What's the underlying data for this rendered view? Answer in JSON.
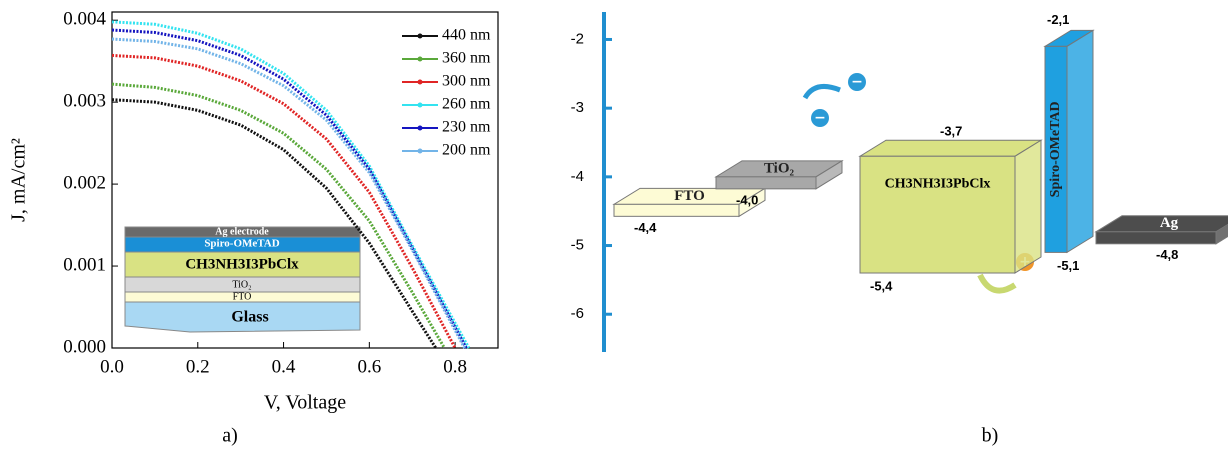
{
  "chart_data": [
    {
      "type": "line",
      "xlabel": "V, Voltage",
      "ylabel": "J, mA/cm²",
      "caption": "a)",
      "xlim": [
        0,
        0.9
      ],
      "ylim": [
        0,
        0.0041
      ],
      "xticks": [
        {
          "value": 0,
          "label": "0.0"
        },
        0.2,
        0.4,
        0.6,
        0.8
      ],
      "yticks": [
        {
          "value": 0,
          "label": "0.000"
        },
        0.001,
        0.002,
        0.003,
        0.004
      ],
      "legend": "upper right",
      "series": [
        {
          "name": "440 nm",
          "color": "#111111",
          "x": [
            0,
            0.1,
            0.2,
            0.3,
            0.4,
            0.5,
            0.6,
            0.7,
            0.755
          ],
          "values": [
            0.00303,
            0.003,
            0.0029,
            0.00272,
            0.00242,
            0.00195,
            0.00128,
            0.00045,
            0
          ]
        },
        {
          "name": "360 nm",
          "color": "#5aa83a",
          "x": [
            0,
            0.1,
            0.2,
            0.3,
            0.4,
            0.5,
            0.6,
            0.7,
            0.775
          ],
          "values": [
            0.00322,
            0.00318,
            0.00308,
            0.0029,
            0.00262,
            0.00218,
            0.00155,
            0.00068,
            0
          ]
        },
        {
          "name": "300 nm",
          "color": "#e02525",
          "x": [
            0,
            0.1,
            0.2,
            0.3,
            0.4,
            0.5,
            0.6,
            0.7,
            0.8
          ],
          "values": [
            0.00357,
            0.00354,
            0.00344,
            0.00326,
            0.00298,
            0.00255,
            0.0019,
            0.00098,
            0
          ]
        },
        {
          "name": "260 nm",
          "color": "#33e3f0",
          "x": [
            0,
            0.1,
            0.2,
            0.3,
            0.4,
            0.5,
            0.6,
            0.7,
            0.832
          ],
          "values": [
            0.00398,
            0.00395,
            0.00384,
            0.00365,
            0.00335,
            0.0029,
            0.00222,
            0.00125,
            0
          ]
        },
        {
          "name": "230 nm",
          "color": "#1515c0",
          "x": [
            0,
            0.1,
            0.2,
            0.3,
            0.4,
            0.5,
            0.6,
            0.7,
            0.826
          ],
          "values": [
            0.00388,
            0.00385,
            0.00375,
            0.00357,
            0.00328,
            0.00284,
            0.00218,
            0.00122,
            0
          ]
        },
        {
          "name": "200 nm",
          "color": "#72b4e8",
          "x": [
            0,
            0.1,
            0.2,
            0.3,
            0.4,
            0.5,
            0.6,
            0.7,
            0.822
          ],
          "values": [
            0.00377,
            0.00374,
            0.00365,
            0.00347,
            0.0032,
            0.00278,
            0.00214,
            0.0012,
            0
          ]
        }
      ],
      "inset": [
        "Ag electrode",
        "Spiro-OMeTAD",
        "CH3NH3I3PbClx",
        "TiO₂",
        "FTO",
        "Glass"
      ]
    },
    {
      "type": "energy",
      "caption": "b)",
      "ylim": [
        -6.55,
        -1.6
      ],
      "yticks": [
        -2,
        -3,
        -4,
        -5,
        -6
      ],
      "layers": [
        {
          "name": "FTO",
          "color": "#fdfbd5",
          "levels": [
            {
              "value": -4.4,
              "label": "-4,4"
            }
          ]
        },
        {
          "name": "TiO₂",
          "color": "#a8a8a8",
          "levels": [
            {
              "value": -4.0,
              "label": "-4,0"
            }
          ]
        },
        {
          "name": "CH3NH3I3PbClx",
          "color": "#d9e283",
          "levels": [
            {
              "value": -3.7,
              "label": "-3,7"
            },
            {
              "value": -5.4,
              "label": "-5,4"
            }
          ]
        },
        {
          "name": "Spiro-OMeTAD",
          "color": "#1fa0e0",
          "levels": [
            {
              "value": -2.1,
              "label": "-2,1"
            },
            {
              "value": -5.1,
              "label": "-5,1"
            }
          ]
        },
        {
          "name": "Ag",
          "color": "#4d4d4d",
          "levels": [
            {
              "value": -4.8,
              "label": "-4,8"
            }
          ]
        }
      ]
    }
  ]
}
